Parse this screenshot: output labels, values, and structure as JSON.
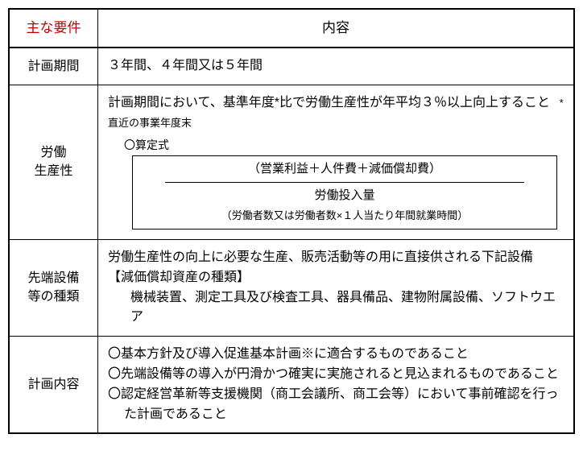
{
  "header": {
    "col1": "主な要件",
    "col2": "内容"
  },
  "rows": {
    "period": {
      "label": "計画期間",
      "content": "３年間、４年間又は５年間"
    },
    "productivity": {
      "label_line1": "労働",
      "label_line2": "生産性",
      "line1": "計画期間において、基準年度*比で労働生産性が年平均３％以上向上すること",
      "note": "*直近の事業年度末",
      "formula_label": "〇算定式",
      "formula_top": "（営業利益＋人件費＋減価償却費）",
      "formula_bottom": "労働投入量",
      "formula_detail": "（労働者数又は労働者数×１人当たり年間就業時間）"
    },
    "equipment": {
      "label_line1": "先端設備",
      "label_line2": "等の種類",
      "intro": "労働生産性の向上に必要な生産、販売活動等の用に直接供される下記設備",
      "sub_title": "【減価償却資産の種類】",
      "items": "機械装置、測定工具及び検査工具、器具備品、建物附属設備、ソフトウエア"
    },
    "plan": {
      "label": "計画内容",
      "item1": "〇基本方針及び導入促進基本計画※に適合するものであること",
      "item2": "〇先端設備等の導入が円滑かつ確実に実施されると見込まれるものであること",
      "item3": "〇認定経営革新等支援機関（商工会議所、商工会等）において事前確認を行った計画であること"
    }
  }
}
